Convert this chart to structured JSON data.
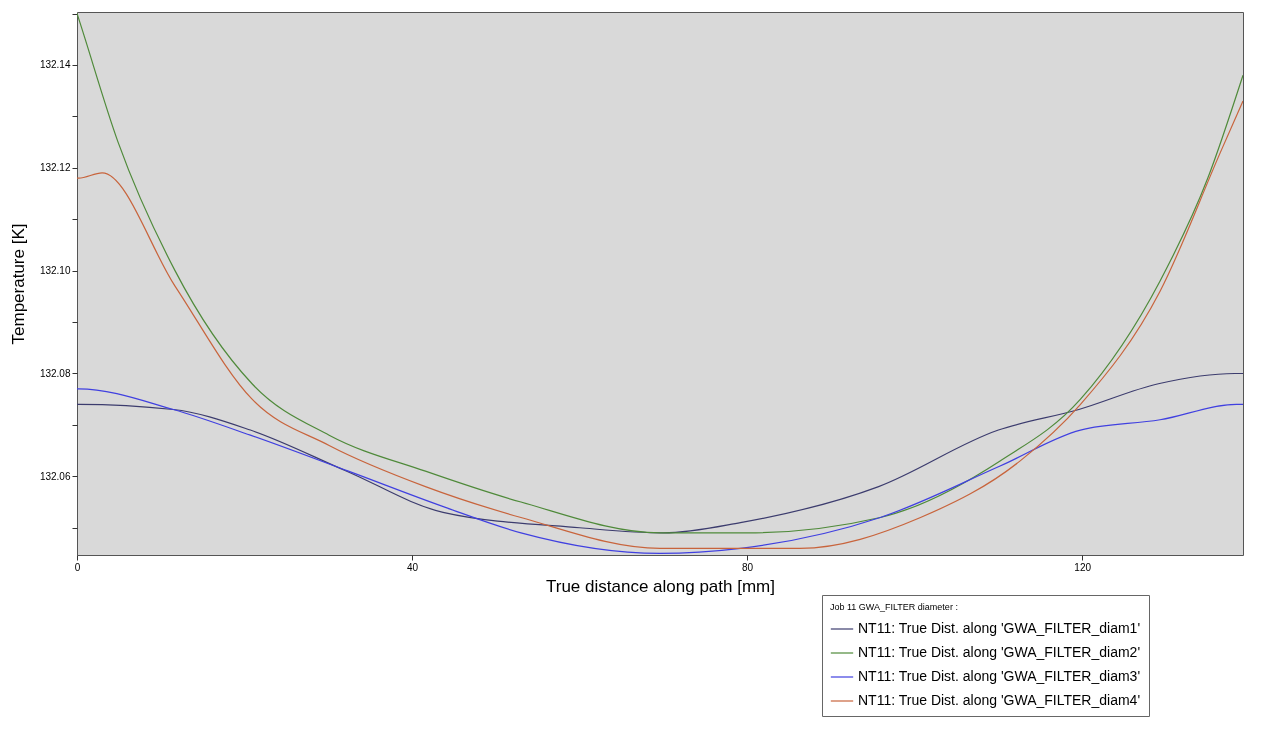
{
  "chart_data": {
    "type": "line",
    "xlabel": "True distance along path [mm]",
    "ylabel": "Temperature [K]",
    "legend_title": "Job 11 GWA_FILTER diameter :",
    "legend": "bottom right",
    "grid": false,
    "line_style": "solid",
    "xlim": [
      0,
      139.2
    ],
    "xticks": [
      0,
      40,
      80,
      120
    ],
    "ylim": [
      132.0447,
      132.1503
    ],
    "yticks": [
      {
        "value": 132.06,
        "label": "132.06"
      },
      {
        "value": 132.08,
        "label": "132.08"
      },
      {
        "value": 132.1,
        "label": "132.10"
      },
      {
        "value": 132.12,
        "label": "132.12"
      },
      {
        "value": 132.14,
        "label": "132.14"
      },
      {
        "value": 132.05,
        "label": null
      },
      {
        "value": 132.07,
        "label": null
      },
      {
        "value": 132.09,
        "label": null
      },
      {
        "value": 132.11,
        "label": null
      },
      {
        "value": 132.13,
        "label": null
      },
      {
        "value": 132.15,
        "label": null
      }
    ],
    "series": [
      {
        "name": "NT11: True Dist. along 'GWA_FILTER_diam1'",
        "color": "#3c3c6e",
        "x": [
          0,
          0.2,
          11.5,
          20.7,
          32.2,
          43.7,
          60,
          70,
          79.2,
          95.7,
          110,
          119.6,
          129.1,
          138.2,
          139.2
        ],
        "values": [
          132.074,
          132.074,
          132.073,
          132.069,
          132.061,
          132.053,
          132.05,
          132.049,
          132.051,
          132.058,
          132.069,
          132.073,
          132.078,
          132.08,
          132.08
        ]
      },
      {
        "name": "NT11: True Dist. along 'GWA_FILTER_diam2'",
        "color": "#4f8a3a",
        "x": [
          0,
          0.2,
          4.9,
          11.7,
          20.9,
          30.1,
          41.6,
          53,
          69.6,
          80,
          95.9,
          110.2,
          119.8,
          129.3,
          135,
          139.2
        ],
        "values": [
          132.15,
          132.149,
          132.125,
          132.1,
          132.078,
          132.068,
          132.061,
          132.055,
          132.049,
          132.049,
          132.052,
          132.063,
          132.075,
          132.098,
          132.118,
          132.138
        ]
      },
      {
        "name": "NT11: True Dist. along 'GWA_FILTER_diam3'",
        "color": "#4040e0",
        "x": [
          0,
          0.2,
          11.5,
          20.7,
          32.4,
          43.9,
          53,
          69.6,
          79.2,
          95.9,
          110.2,
          119.8,
          129.3,
          138.4,
          139.2
        ],
        "values": [
          132.077,
          132.077,
          132.073,
          132.068,
          132.061,
          132.054,
          132.049,
          132.045,
          132.046,
          132.052,
          132.062,
          132.069,
          132.071,
          132.074,
          132.074
        ]
      },
      {
        "name": "NT11: True Dist. along 'GWA_FILTER_diam4'",
        "color": "#c8643c",
        "x": [
          0,
          0.2,
          3,
          11.7,
          20.9,
          30.1,
          41.6,
          53,
          69.6,
          86.3,
          100.7,
          112.6,
          119.8,
          129.3,
          136.5,
          139.2
        ],
        "values": [
          132.118,
          132.118,
          132.119,
          132.097,
          132.075,
          132.066,
          132.058,
          132.052,
          132.046,
          132.046,
          132.052,
          132.063,
          132.074,
          132.096,
          132.123,
          132.133
        ]
      }
    ]
  }
}
